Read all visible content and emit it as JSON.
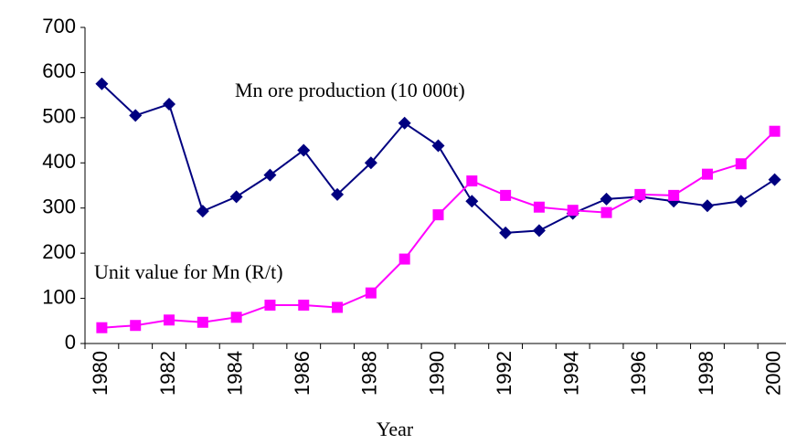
{
  "chart_data": {
    "type": "line",
    "categories": [
      "1980",
      null,
      "1982",
      null,
      "1984",
      null,
      "1986",
      null,
      "1988",
      null,
      "1990",
      null,
      "1992",
      null,
      "1994",
      null,
      "1996",
      null,
      "1998",
      null,
      "2000"
    ],
    "series": [
      {
        "name": "Mn ore production (10 000t)",
        "color": "#000080",
        "marker": "diamond",
        "values": [
          575,
          505,
          530,
          293,
          325,
          373,
          428,
          330,
          400,
          488,
          438,
          315,
          245,
          250,
          288,
          320,
          325,
          315,
          305,
          315,
          363
        ]
      },
      {
        "name": "Unit value for Mn (R/t)",
        "color": "#ff00ff",
        "marker": "square",
        "values": [
          35,
          40,
          52,
          47,
          58,
          85,
          85,
          80,
          112,
          187,
          285,
          360,
          328,
          302,
          295,
          290,
          330,
          328,
          375,
          398,
          470
        ]
      }
    ],
    "xlabel": "Year",
    "ylim": [
      0,
      700
    ],
    "yticks": [
      0,
      100,
      200,
      300,
      400,
      500,
      600,
      700
    ],
    "grid": false
  }
}
